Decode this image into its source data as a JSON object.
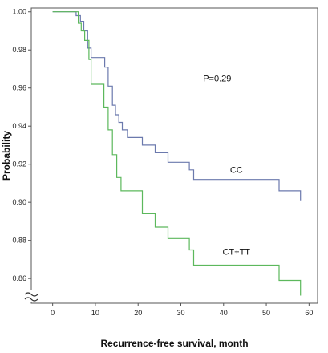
{
  "chart_data": {
    "type": "line",
    "title": "",
    "xlabel": "Recurrence-free survival, month",
    "ylabel": "Probability",
    "xlim": [
      -5,
      62
    ],
    "ylim": [
      0.847,
      1.002
    ],
    "x_ticks": [
      "0",
      "10",
      "20",
      "30",
      "40",
      "50",
      "60"
    ],
    "y_ticks": [
      "1.00",
      "0.98",
      "0.96",
      "0.94",
      "0.92",
      "0.90",
      "0.88",
      "0.86"
    ],
    "axis_break": "y",
    "grid": false,
    "annotations": [
      {
        "text": "P=0.29",
        "x": 38.5,
        "y": 0.9635
      }
    ],
    "series": [
      {
        "name": "CC",
        "color": "#6b79ad",
        "label_at": {
          "x": 43,
          "y": 0.9155
        },
        "x": [
          0,
          5.5,
          5.5,
          6.5,
          6.5,
          7.3,
          7.3,
          8.2,
          8.2,
          9,
          9,
          12.2,
          12.2,
          13,
          13,
          14,
          14,
          14.7,
          14.7,
          15.5,
          15.5,
          16.3,
          16.3,
          17.5,
          17.5,
          21,
          21,
          24,
          24,
          27,
          27,
          32,
          32,
          33,
          33,
          53,
          53,
          58,
          58
        ],
        "y": [
          1.0,
          1.0,
          0.998,
          0.998,
          0.995,
          0.995,
          0.99,
          0.99,
          0.981,
          0.981,
          0.976,
          0.976,
          0.971,
          0.971,
          0.961,
          0.961,
          0.951,
          0.951,
          0.946,
          0.946,
          0.942,
          0.942,
          0.938,
          0.938,
          0.934,
          0.934,
          0.93,
          0.93,
          0.926,
          0.926,
          0.921,
          0.921,
          0.917,
          0.917,
          0.912,
          0.912,
          0.906,
          0.906,
          0.901
        ]
      },
      {
        "name": "CT+TT",
        "color": "#5cb85c",
        "label_at": {
          "x": 43,
          "y": 0.8725
        },
        "x": [
          0,
          6,
          6,
          6.7,
          6.7,
          7.5,
          7.5,
          8.5,
          8.5,
          9,
          9,
          12,
          12,
          13,
          13,
          14,
          14,
          15,
          15,
          16,
          16,
          21,
          21,
          24,
          24,
          27,
          27,
          32,
          32,
          33,
          33,
          53,
          53,
          58,
          58
        ],
        "y": [
          1.0,
          1.0,
          0.994,
          0.994,
          0.99,
          0.99,
          0.985,
          0.985,
          0.975,
          0.975,
          0.962,
          0.962,
          0.95,
          0.95,
          0.938,
          0.938,
          0.925,
          0.925,
          0.913,
          0.913,
          0.906,
          0.906,
          0.894,
          0.894,
          0.887,
          0.887,
          0.881,
          0.881,
          0.875,
          0.875,
          0.867,
          0.867,
          0.859,
          0.859,
          0.851
        ]
      }
    ]
  }
}
